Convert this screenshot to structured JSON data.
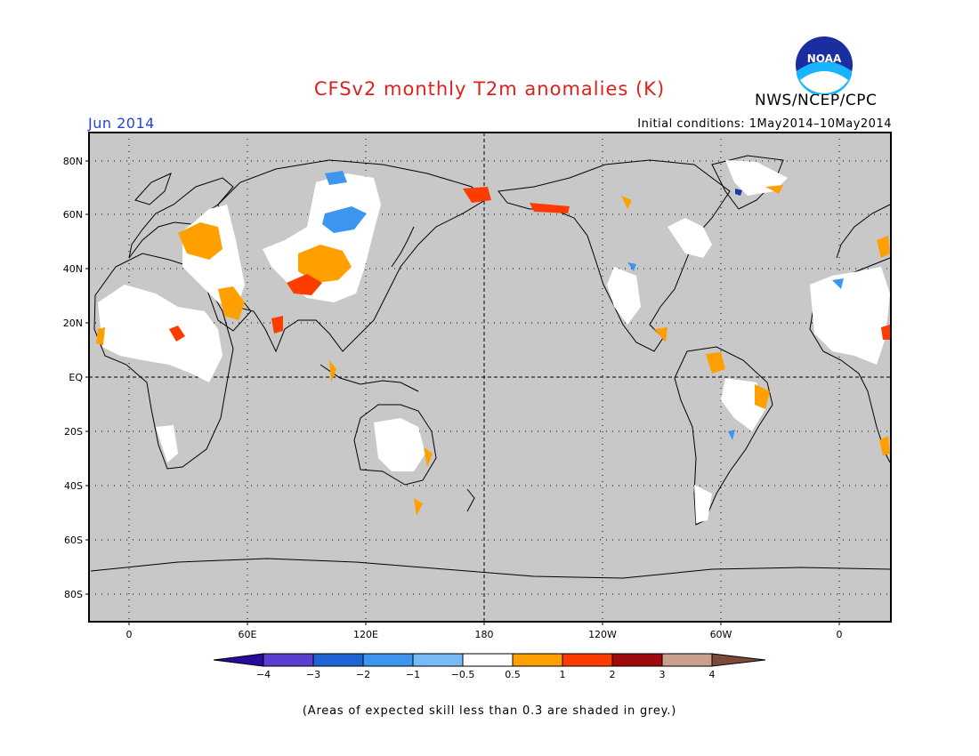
{
  "header": {
    "title": "CFSv2 monthly T2m anomalies (K)",
    "month": "Jun 2014",
    "initial_conditions": "Initial conditions: 1May2014–10May2014",
    "agency": "NWS/NCEP/CPC",
    "logo_text": "NOAA"
  },
  "map": {
    "background_color": "#c8c8c8",
    "x_ticks": [
      "0",
      "60E",
      "120E",
      "180",
      "120W",
      "60W",
      "0"
    ],
    "y_ticks": [
      "80N",
      "60N",
      "40N",
      "20N",
      "EQ",
      "20S",
      "40S",
      "60S",
      "80S"
    ]
  },
  "colorbar": {
    "colors": [
      "#2a0a9a",
      "#5a3ed0",
      "#1e64d2",
      "#3c96f0",
      "#78baf6",
      "#ffffff",
      "#ffa000",
      "#ff3c00",
      "#a00a0a",
      "#c8a08c",
      "#7a4a3a"
    ],
    "labels": [
      "−4",
      "−3",
      "−2",
      "−1",
      "−0.5",
      "0.5",
      "1",
      "2",
      "3",
      "4"
    ]
  },
  "footnote": "(Areas of expected skill less than 0.3 are shaded in grey.)"
}
